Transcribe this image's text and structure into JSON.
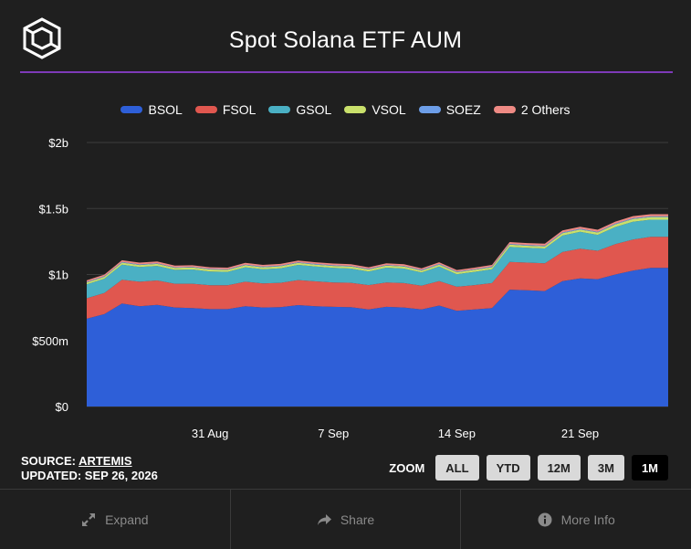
{
  "header": {
    "title": "Spot Solana ETF AUM",
    "logo_icon": "artemis-cube-logo"
  },
  "colors": {
    "background": "#1f1f1f",
    "divider": "#7e3ab8",
    "grid": "#3c3c3c"
  },
  "legend": [
    {
      "label": "BSOL",
      "color": "#2e5fd8"
    },
    {
      "label": "FSOL",
      "color": "#e0574f"
    },
    {
      "label": "GSOL",
      "color": "#4ab0c4"
    },
    {
      "label": "VSOL",
      "color": "#c9e06b"
    },
    {
      "label": "SOEZ",
      "color": "#6d9ee8"
    },
    {
      "label": "2 Others",
      "color": "#ee8a84"
    }
  ],
  "chart_data": {
    "type": "area",
    "stacked": true,
    "title": "Spot Solana ETF AUM",
    "xlabel": "",
    "ylabel": "",
    "x_start": "2026-08-24",
    "x_end": "2026-09-26",
    "x_ticks": [
      {
        "label": "31 Aug",
        "date": "2026-08-31"
      },
      {
        "label": "7 Sep",
        "date": "2026-09-07"
      },
      {
        "label": "14 Sep",
        "date": "2026-09-14"
      },
      {
        "label": "21 Sep",
        "date": "2026-09-21"
      }
    ],
    "y_ticks": [
      {
        "label": "$0",
        "value": 0
      },
      {
        "label": "$500m",
        "value": 500
      },
      {
        "label": "$1b",
        "value": 1000
      },
      {
        "label": "$1.5b",
        "value": 1500
      },
      {
        "label": "$2b",
        "value": 2000
      }
    ],
    "ylim": [
      0,
      2000
    ],
    "y_unit": "USD millions",
    "grid": true,
    "legend_position": "top",
    "x": [
      "2026-08-24",
      "2026-08-25",
      "2026-08-26",
      "2026-08-27",
      "2026-08-28",
      "2026-08-29",
      "2026-08-30",
      "2026-08-31",
      "2026-09-01",
      "2026-09-02",
      "2026-09-03",
      "2026-09-04",
      "2026-09-05",
      "2026-09-06",
      "2026-09-07",
      "2026-09-08",
      "2026-09-09",
      "2026-09-10",
      "2026-09-11",
      "2026-09-12",
      "2026-09-13",
      "2026-09-14",
      "2026-09-15",
      "2026-09-16",
      "2026-09-17",
      "2026-09-18",
      "2026-09-19",
      "2026-09-20",
      "2026-09-21",
      "2026-09-22",
      "2026-09-23",
      "2026-09-24",
      "2026-09-25",
      "2026-09-26"
    ],
    "series": [
      {
        "name": "BSOL",
        "color": "#2e5fd8",
        "values": [
          665,
          700,
          780,
          760,
          770,
          750,
          745,
          738,
          738,
          760,
          750,
          752,
          768,
          760,
          755,
          752,
          735,
          755,
          750,
          735,
          765,
          725,
          735,
          745,
          885,
          880,
          875,
          950,
          970,
          965,
          1000,
          1030,
          1050,
          1050
        ]
      },
      {
        "name": "FSOL",
        "color": "#e0574f",
        "values": [
          155,
          160,
          180,
          185,
          185,
          180,
          185,
          180,
          180,
          185,
          182,
          185,
          190,
          188,
          185,
          185,
          185,
          185,
          185,
          180,
          185,
          182,
          185,
          190,
          210,
          210,
          210,
          220,
          225,
          215,
          230,
          235,
          235,
          235
        ]
      },
      {
        "name": "GSOL",
        "color": "#4ab0c4",
        "values": [
          105,
          108,
          115,
          112,
          110,
          105,
          108,
          105,
          102,
          110,
          108,
          110,
          115,
          112,
          110,
          108,
          103,
          112,
          110,
          100,
          110,
          95,
          100,
          105,
          115,
          112,
          112,
          125,
          128,
          120,
          130,
          135,
          130,
          130
        ]
      },
      {
        "name": "VSOL",
        "color": "#c9e06b",
        "values": [
          14,
          14,
          15,
          15,
          15,
          15,
          15,
          15,
          15,
          15,
          15,
          15,
          15,
          15,
          15,
          15,
          15,
          15,
          15,
          15,
          15,
          15,
          15,
          15,
          16,
          16,
          16,
          18,
          18,
          18,
          20,
          20,
          20,
          20
        ]
      },
      {
        "name": "SOEZ",
        "color": "#6d9ee8",
        "values": [
          5,
          5,
          5,
          5,
          5,
          5,
          5,
          5,
          5,
          5,
          5,
          5,
          5,
          5,
          5,
          5,
          5,
          5,
          5,
          5,
          5,
          5,
          5,
          5,
          6,
          6,
          6,
          6,
          6,
          6,
          6,
          6,
          6,
          6
        ]
      },
      {
        "name": "2 Others",
        "color": "#ee8a84",
        "values": [
          12,
          12,
          13,
          13,
          13,
          12,
          12,
          12,
          12,
          13,
          13,
          13,
          13,
          13,
          13,
          13,
          12,
          13,
          13,
          12,
          13,
          12,
          12,
          13,
          14,
          14,
          14,
          15,
          15,
          15,
          15,
          16,
          16,
          16
        ]
      }
    ]
  },
  "footer": {
    "source_label": "SOURCE: ",
    "source_name": "ARTEMIS",
    "updated": "UPDATED: SEP 26, 2026"
  },
  "zoom": {
    "label": "ZOOM",
    "options": [
      "ALL",
      "YTD",
      "12M",
      "3M",
      "1M"
    ],
    "selected": "1M"
  },
  "bottom_bar": [
    {
      "label": "Expand",
      "icon": "expand-icon"
    },
    {
      "label": "Share",
      "icon": "share-icon"
    },
    {
      "label": "More Info",
      "icon": "info-icon"
    }
  ]
}
